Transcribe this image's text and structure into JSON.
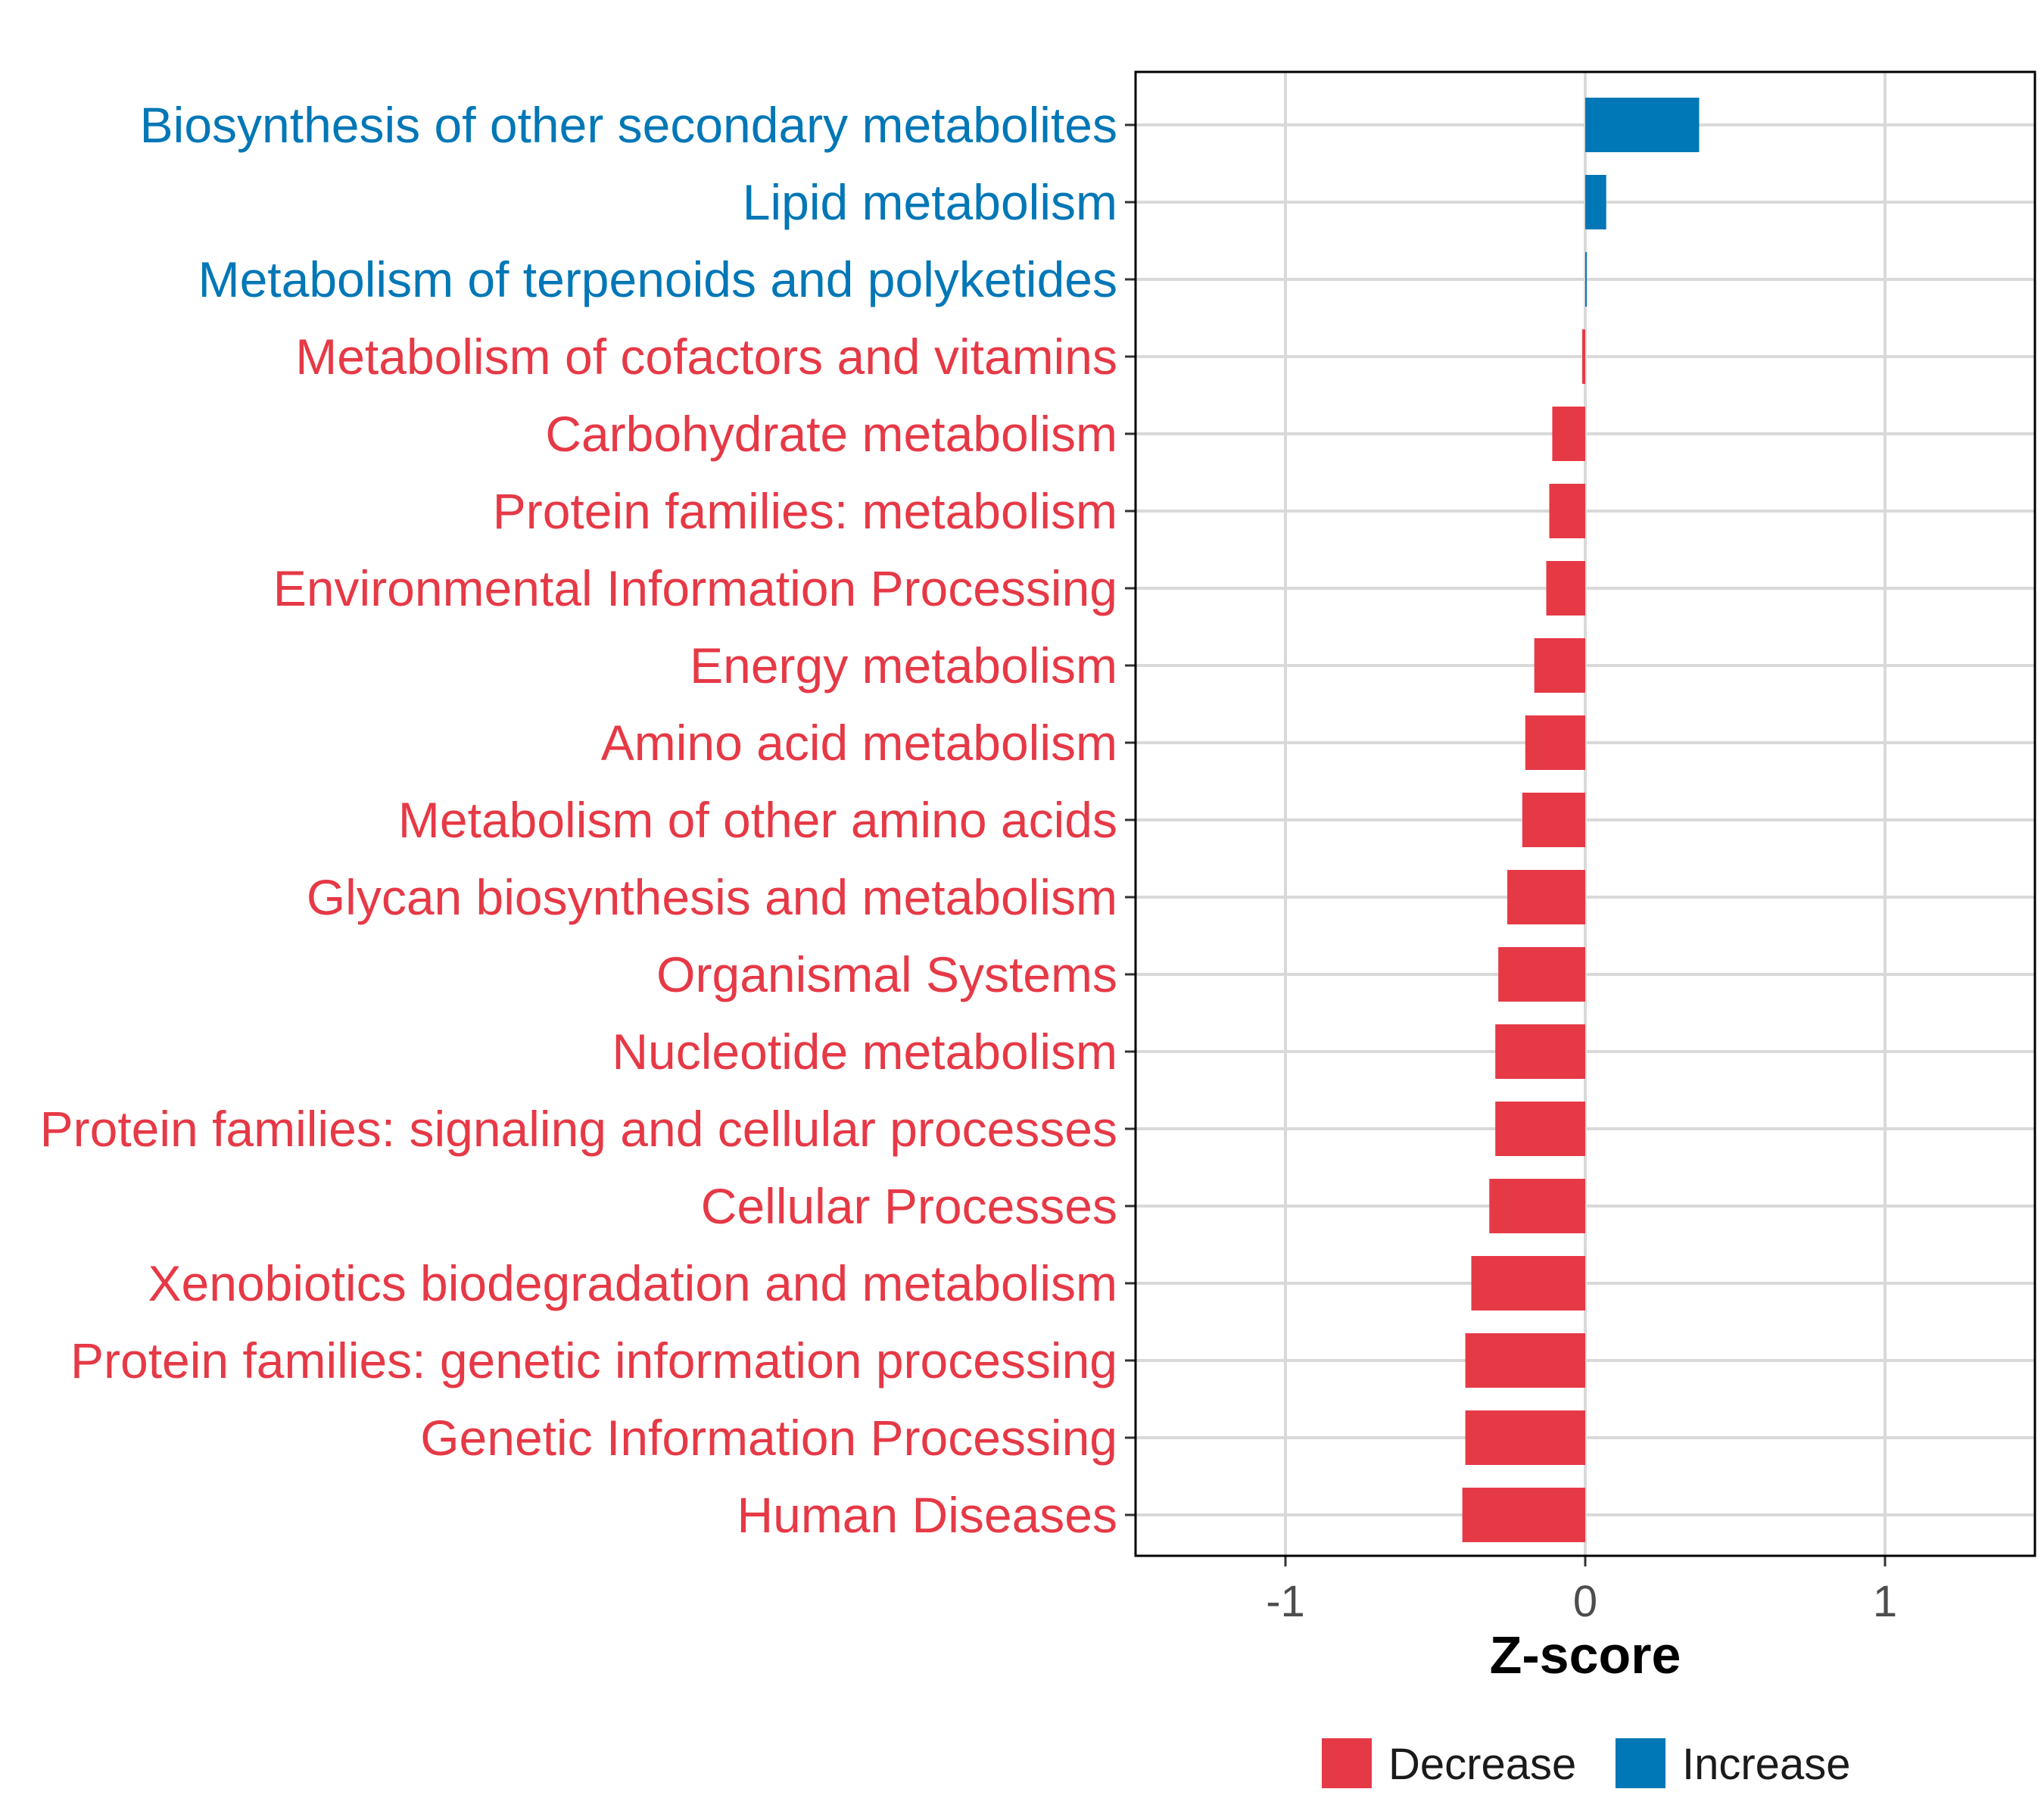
{
  "colors": {
    "decrease": "#E63946",
    "increase": "#0077B6",
    "grid": "#D9D9D9",
    "frame": "#000000"
  },
  "chart_data": {
    "type": "bar",
    "orientation": "horizontal",
    "title": "",
    "xlabel": "Z-score",
    "ylabel": "",
    "xlim": [
      -1.5,
      1.5
    ],
    "xticks": [
      -1,
      0,
      1
    ],
    "xtick_labels": [
      "-1",
      "0",
      "1"
    ],
    "grid": true,
    "legend_position": "bottom",
    "categories": [
      "Biosynthesis of other secondary metabolites",
      "Lipid metabolism",
      "Metabolism of terpenoids and polyketides",
      "Metabolism of cofactors and vitamins",
      "Carbohydrate metabolism",
      "Protein families: metabolism",
      "Environmental Information Processing",
      "Energy metabolism",
      "Amino acid metabolism",
      "Metabolism of other amino acids",
      "Glycan biosynthesis and metabolism",
      "Organismal Systems",
      "Nucleotide metabolism",
      "Protein families: signaling and cellular processes",
      "Cellular Processes",
      "Xenobiotics biodegradation and metabolism",
      "Protein families: genetic information processing",
      "Genetic Information Processing",
      "Human Diseases"
    ],
    "values": [
      0.38,
      0.07,
      0.002,
      -0.01,
      -0.11,
      -0.12,
      -0.13,
      -0.17,
      -0.2,
      -0.21,
      -0.26,
      -0.29,
      -0.3,
      -0.3,
      -0.32,
      -0.38,
      -0.4,
      -0.4,
      -0.41
    ],
    "groups": [
      "Increase",
      "Increase",
      "Increase",
      "Decrease",
      "Decrease",
      "Decrease",
      "Decrease",
      "Decrease",
      "Decrease",
      "Decrease",
      "Decrease",
      "Decrease",
      "Decrease",
      "Decrease",
      "Decrease",
      "Decrease",
      "Decrease",
      "Decrease",
      "Decrease"
    ],
    "legend": [
      {
        "label": "Decrease",
        "color_key": "decrease"
      },
      {
        "label": "Increase",
        "color_key": "increase"
      }
    ]
  }
}
